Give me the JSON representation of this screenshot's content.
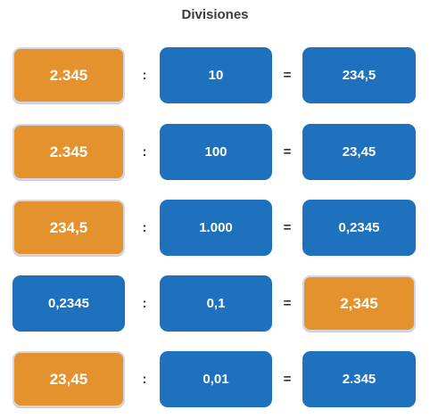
{
  "title": "Divisiones",
  "colors": {
    "blue": "#1e72bd",
    "orange": "#e3922e"
  },
  "operators": {
    "divide": ":",
    "equals": "="
  },
  "rows": [
    {
      "a": "2.345",
      "b": "10",
      "result": "234,5",
      "highlight": "a"
    },
    {
      "a": "2.345",
      "b": "100",
      "result": "23,45",
      "highlight": "a"
    },
    {
      "a": "234,5",
      "b": "1.000",
      "result": "0,2345",
      "highlight": "a"
    },
    {
      "a": "0,2345",
      "b": "0,1",
      "result": "2,345",
      "highlight": "result"
    },
    {
      "a": "23,45",
      "b": "0,01",
      "result": "2.345",
      "highlight": "a"
    }
  ]
}
